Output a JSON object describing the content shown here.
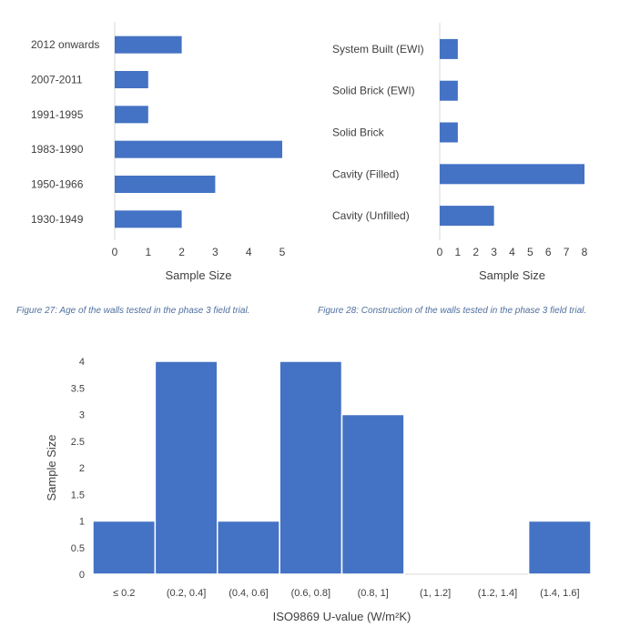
{
  "theme": {
    "bar_color": "#4472c4",
    "axis_color": "#d9d9d9",
    "caption_color": "#4f6f9f"
  },
  "captions": {
    "fig27": "Figure 27: Age of the walls tested in the phase 3 field trial.",
    "fig28": "Figure 28: Construction of the walls tested in the phase 3 field trial."
  },
  "chart_data": [
    {
      "type": "bar",
      "orientation": "horizontal",
      "categories": [
        "2012 onwards",
        "2007-2011",
        "1991-1995",
        "1983-1990",
        "1950-1966",
        "1930-1949"
      ],
      "values": [
        2,
        1,
        1,
        5,
        3,
        2
      ],
      "xlabel": "Sample Size",
      "xlim": [
        0,
        5
      ],
      "xticks": [
        "0",
        "1",
        "2",
        "3",
        "4",
        "5"
      ],
      "grid": false
    },
    {
      "type": "bar",
      "orientation": "horizontal",
      "categories": [
        "System Built (EWI)",
        "Solid Brick (EWI)",
        "Solid Brick",
        "Cavity (Filled)",
        "Cavity (Unfilled)"
      ],
      "values": [
        1,
        1,
        1,
        8,
        3
      ],
      "xlabel": "Sample Size",
      "xlim": [
        0,
        8
      ],
      "xticks": [
        "0",
        "1",
        "2",
        "3",
        "4",
        "5",
        "6",
        "7",
        "8"
      ],
      "grid": false
    },
    {
      "type": "bar",
      "orientation": "vertical",
      "categories": [
        "≤ 0.2",
        "(0.2, 0.4]",
        "(0.4, 0.6]",
        "(0.6, 0.8]",
        "(0.8, 1]",
        "(1, 1.2]",
        "(1.2, 1.4]",
        "(1.4, 1.6]"
      ],
      "values": [
        1,
        4,
        1,
        4,
        3,
        0,
        0,
        1
      ],
      "xlabel": "ISO9869 U-value (W/m²K)",
      "ylabel": "Sample Size",
      "ylim": [
        0,
        4
      ],
      "yticks": [
        "0",
        "0.5",
        "1",
        "1.5",
        "2",
        "2.5",
        "3",
        "3.5",
        "4"
      ],
      "grid": false
    }
  ]
}
